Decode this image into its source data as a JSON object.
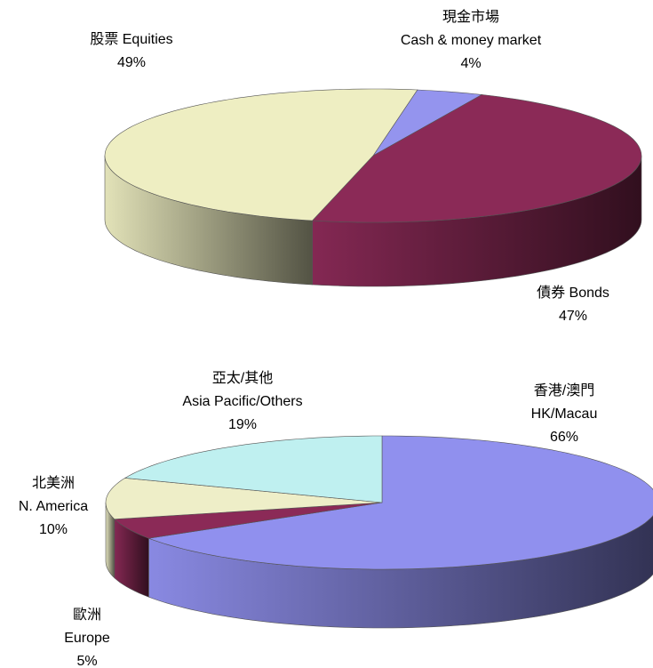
{
  "chart_data": [
    {
      "type": "pie3d",
      "categories": [
        [
          "現金市場",
          "Cash & money market"
        ],
        [
          "債券 Bonds"
        ],
        [
          "股票 Equities"
        ]
      ],
      "values": [
        4,
        47,
        49
      ],
      "value_labels": [
        "4%",
        "47%",
        "49%"
      ],
      "colors": [
        "#9494ee",
        "#8b2a57",
        "#eeeec2"
      ]
    },
    {
      "type": "pie3d",
      "categories": [
        [
          "香港/澳門",
          "HK/Macau"
        ],
        [
          "歐洲",
          "Europe"
        ],
        [
          "北美洲",
          "N. America"
        ],
        [
          "亞太/其他",
          "Asia Pacific/Others"
        ]
      ],
      "values": [
        66,
        5,
        10,
        19
      ],
      "value_labels": [
        "66%",
        "5%",
        "10%",
        "19%"
      ],
      "colors": [
        "#9090ee",
        "#8b2a57",
        "#eeeec8",
        "#bff0f0"
      ]
    }
  ]
}
